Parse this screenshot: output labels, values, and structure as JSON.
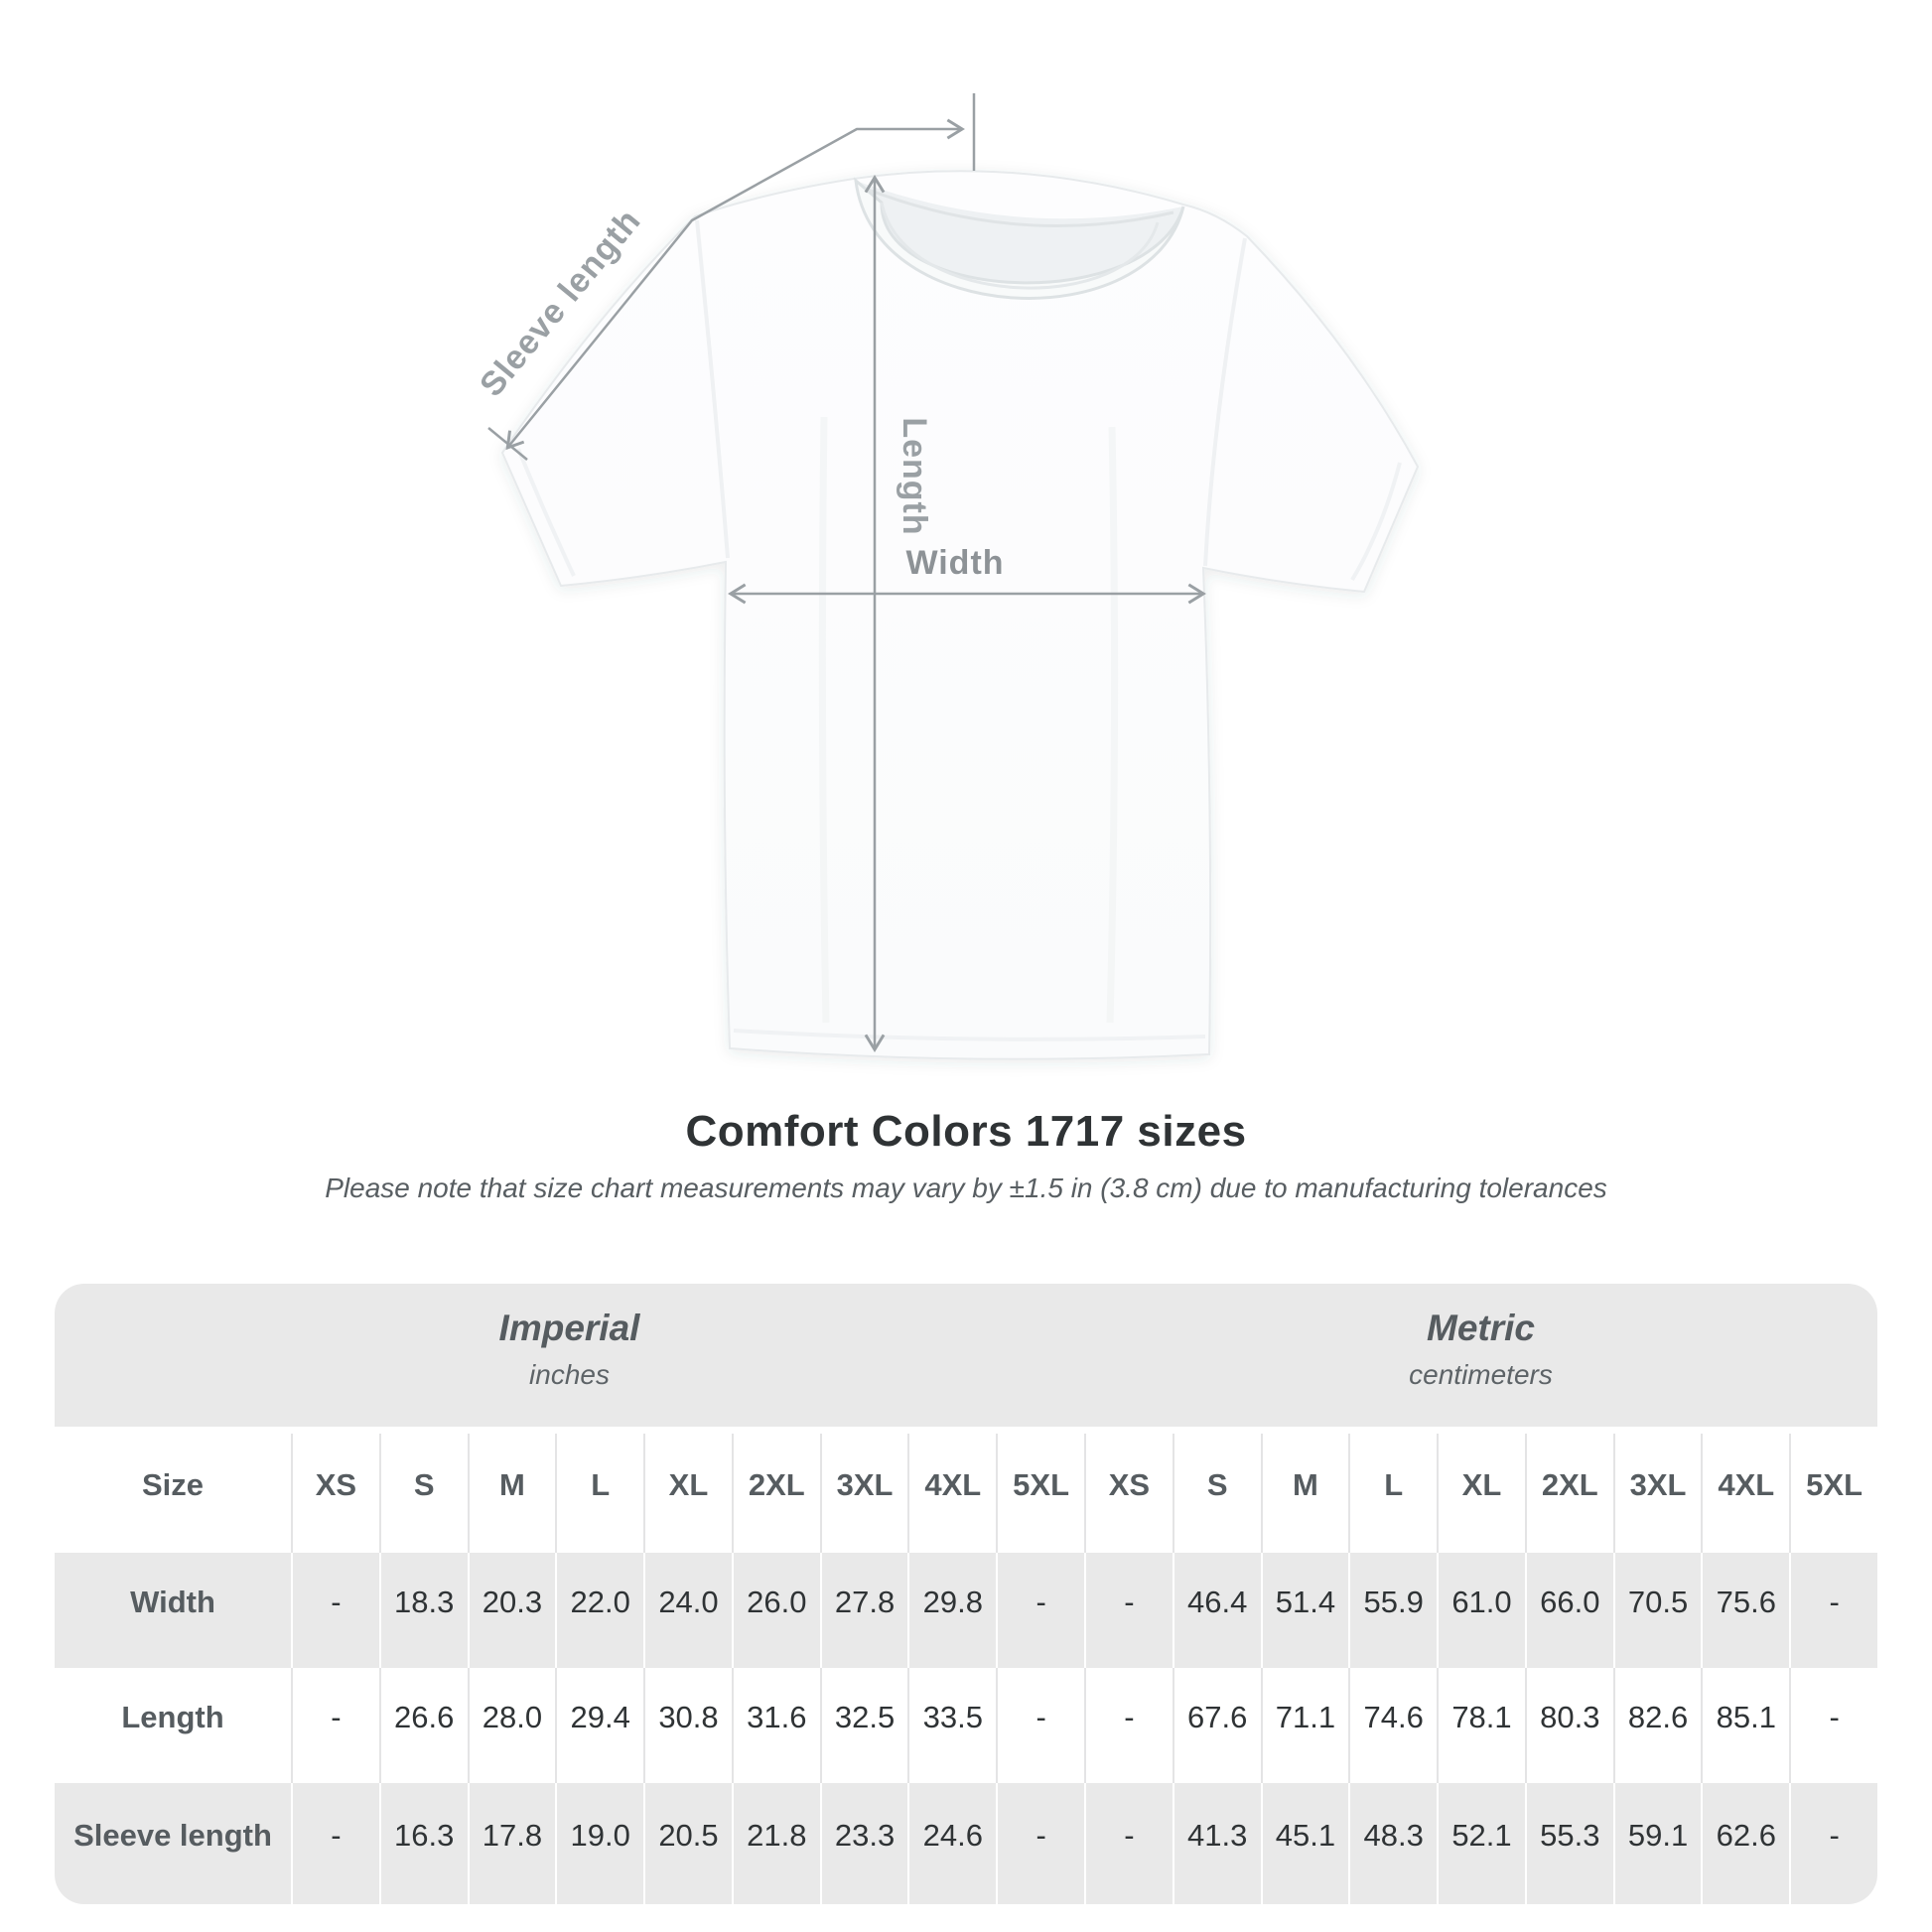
{
  "diagram": {
    "labels": {
      "sleeve_length": "Sleeve length",
      "length": "Length",
      "width": "Width"
    }
  },
  "title": "Comfort Colors 1717 sizes",
  "note": "Please note that size chart measurements may vary by ±1.5 in (3.8 cm) due to manufacturing tolerances",
  "colors": {
    "annotation_gray": "#9aa0a4",
    "table_band_gray": "#e9e9e9",
    "label_text": "#565c60",
    "value_text": "#2f3335",
    "title_text": "#2f3335",
    "note_text": "#585e62"
  },
  "chart_data": {
    "type": "table",
    "title": "Comfort Colors 1717 sizes",
    "note": "Please note that size chart measurements may vary by ±1.5 in (3.8 cm) due to manufacturing tolerances",
    "unit_groups": [
      {
        "label": "Imperial",
        "sublabel": "inches"
      },
      {
        "label": "Metric",
        "sublabel": "centimeters"
      }
    ],
    "size_header_label": "Size",
    "sizes": [
      "XS",
      "S",
      "M",
      "L",
      "XL",
      "2XL",
      "3XL",
      "4XL",
      "5XL"
    ],
    "rows": [
      {
        "label": "Width",
        "imperial": [
          "-",
          "18.3",
          "20.3",
          "22.0",
          "24.0",
          "26.0",
          "27.8",
          "29.8",
          "-"
        ],
        "metric": [
          "-",
          "46.4",
          "51.4",
          "55.9",
          "61.0",
          "66.0",
          "70.5",
          "75.6",
          "-"
        ]
      },
      {
        "label": "Length",
        "imperial": [
          "-",
          "26.6",
          "28.0",
          "29.4",
          "30.8",
          "31.6",
          "32.5",
          "33.5",
          "-"
        ],
        "metric": [
          "-",
          "67.6",
          "71.1",
          "74.6",
          "78.1",
          "80.3",
          "82.6",
          "85.1",
          "-"
        ]
      },
      {
        "label": "Sleeve length",
        "imperial": [
          "-",
          "16.3",
          "17.8",
          "19.0",
          "20.5",
          "21.8",
          "23.3",
          "24.6",
          "-"
        ],
        "metric": [
          "-",
          "41.3",
          "45.1",
          "48.3",
          "52.1",
          "55.3",
          "59.1",
          "62.6",
          "-"
        ]
      }
    ]
  }
}
